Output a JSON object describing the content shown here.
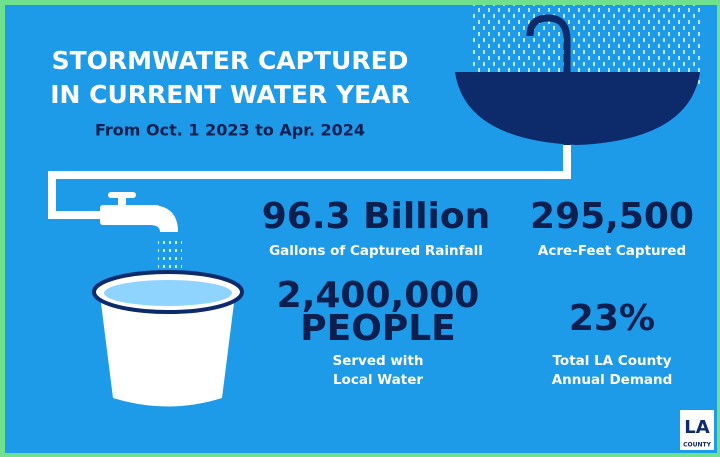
{
  "header": {
    "title_lines": [
      "STORMWATER CAPTURED",
      "IN CURRENT WATER YEAR"
    ],
    "subtitle": "From Oct. 1 2023 to Apr. 2024"
  },
  "stats": [
    {
      "value_lines": [
        "96.3 Billion"
      ],
      "label_lines": [
        "Gallons of Captured Rainfall"
      ]
    },
    {
      "value_lines": [
        "295,500"
      ],
      "label_lines": [
        "Acre-Feet Captured"
      ]
    },
    {
      "value_lines": [
        "2,400,000",
        "PEOPLE"
      ],
      "label_lines": [
        "Served with",
        "Local Water"
      ]
    },
    {
      "value_lines": [
        "23%"
      ],
      "label_lines": [
        "Total LA County",
        "Annual Demand"
      ]
    }
  ],
  "logo": {
    "lines": [
      "LA",
      "COUNTY"
    ]
  }
}
